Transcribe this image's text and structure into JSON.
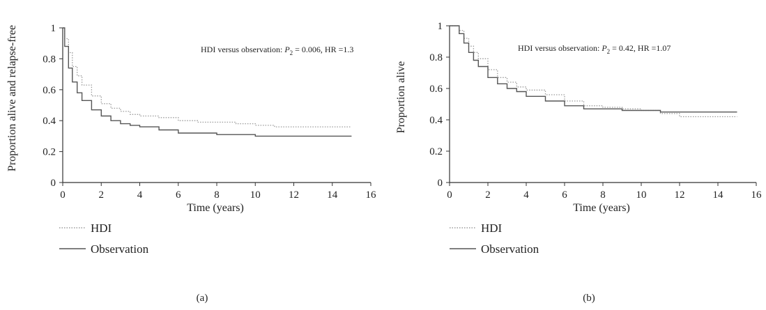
{
  "chart_data": [
    {
      "type": "line",
      "ylabel": "Proportion alive and relapse-free",
      "xlabel": "Time (years)",
      "xlim": [
        0,
        16
      ],
      "ylim": [
        0,
        1
      ],
      "xticks": [
        "0",
        "2",
        "4",
        "6",
        "8",
        "10",
        "12",
        "14",
        "16"
      ],
      "yticks": [
        "0",
        "0.2",
        "0.4",
        "0.6",
        "0.8",
        "1"
      ],
      "annotation": {
        "prefix": "HDI versus observation: ",
        "p_symbol": "P",
        "p_subscript": "2",
        "values": " = 0.006, HR =1.3"
      },
      "panel_label": "(a)",
      "legend_position": "bottom-left",
      "grid": false,
      "series": [
        {
          "name": "HDI",
          "style": "dotted",
          "color": "#9a9a9a",
          "x": [
            0,
            0.1,
            0.3,
            0.5,
            0.75,
            1.0,
            1.5,
            2.0,
            2.5,
            3.0,
            3.5,
            4.0,
            5.0,
            6.0,
            7.0,
            8.0,
            9.0,
            10.0,
            11.0,
            12.0,
            13.0,
            14.0,
            15.0
          ],
          "y": [
            1.0,
            0.93,
            0.84,
            0.75,
            0.69,
            0.63,
            0.56,
            0.51,
            0.48,
            0.46,
            0.44,
            0.43,
            0.42,
            0.4,
            0.39,
            0.39,
            0.38,
            0.37,
            0.36,
            0.36,
            0.36,
            0.36,
            0.36
          ]
        },
        {
          "name": "Observation",
          "style": "solid",
          "color": "#555555",
          "x": [
            0,
            0.1,
            0.3,
            0.5,
            0.75,
            1.0,
            1.5,
            2.0,
            2.5,
            3.0,
            3.5,
            4.0,
            5.0,
            6.0,
            7.0,
            8.0,
            9.0,
            10.0,
            11.0,
            12.0,
            13.0,
            14.0,
            15.0
          ],
          "y": [
            1.0,
            0.88,
            0.74,
            0.65,
            0.58,
            0.53,
            0.47,
            0.43,
            0.4,
            0.38,
            0.37,
            0.36,
            0.34,
            0.32,
            0.32,
            0.31,
            0.31,
            0.3,
            0.3,
            0.3,
            0.3,
            0.3,
            0.3
          ]
        }
      ]
    },
    {
      "type": "line",
      "ylabel": "Proportion alive",
      "xlabel": "Time (years)",
      "xlim": [
        0,
        16
      ],
      "ylim": [
        0,
        1
      ],
      "xticks": [
        "0",
        "2",
        "4",
        "6",
        "8",
        "10",
        "12",
        "14",
        "16"
      ],
      "yticks": [
        "0",
        "0.2",
        "0.4",
        "0.6",
        "0.8",
        "1"
      ],
      "annotation": {
        "prefix": "HDI versus observation: ",
        "p_symbol": "P",
        "p_subscript": "2",
        "values": " = 0.42, HR =1.07"
      },
      "panel_label": "(b)",
      "legend_position": "bottom-left",
      "grid": false,
      "series": [
        {
          "name": "HDI",
          "style": "dotted",
          "color": "#9a9a9a",
          "x": [
            0,
            0.2,
            0.5,
            0.75,
            1.0,
            1.25,
            1.5,
            2.0,
            2.5,
            3.0,
            3.5,
            4.0,
            5.0,
            6.0,
            7.0,
            8.0,
            9.0,
            10.0,
            11.0,
            12.0,
            13.0,
            14.0,
            15.0
          ],
          "y": [
            1.0,
            1.0,
            0.97,
            0.92,
            0.87,
            0.83,
            0.79,
            0.72,
            0.67,
            0.64,
            0.61,
            0.59,
            0.56,
            0.52,
            0.49,
            0.48,
            0.47,
            0.46,
            0.44,
            0.42,
            0.42,
            0.42,
            0.42
          ]
        },
        {
          "name": "Observation",
          "style": "solid",
          "color": "#555555",
          "x": [
            0,
            0.2,
            0.5,
            0.75,
            1.0,
            1.25,
            1.5,
            2.0,
            2.5,
            3.0,
            3.5,
            4.0,
            5.0,
            6.0,
            7.0,
            8.0,
            9.0,
            10.0,
            11.0,
            12.0,
            13.0,
            14.0,
            15.0
          ],
          "y": [
            1.0,
            1.0,
            0.95,
            0.89,
            0.83,
            0.78,
            0.74,
            0.67,
            0.63,
            0.6,
            0.58,
            0.55,
            0.52,
            0.49,
            0.47,
            0.47,
            0.46,
            0.46,
            0.45,
            0.45,
            0.45,
            0.45,
            0.45
          ]
        }
      ]
    }
  ]
}
